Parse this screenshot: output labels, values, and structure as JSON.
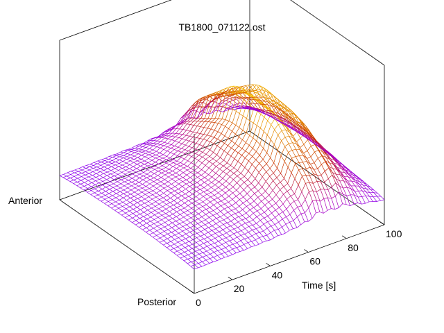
{
  "chart_data": {
    "type": "surface",
    "title": "TB1800_071122.ost",
    "xlabel": "Time [s]",
    "x_ticks": [
      0,
      20,
      40,
      60,
      80,
      100
    ],
    "xlim": [
      0,
      100
    ],
    "y_end_labels": {
      "front": "Posterior",
      "back": "Anterior"
    },
    "z_axis": {
      "ticks_shown": false,
      "range_hint": [
        0,
        1
      ]
    },
    "colormap": [
      "#8000ff",
      "#b000b8",
      "#c83000",
      "#e08000",
      "#ffd000"
    ],
    "mesh": {
      "time_samples": 51,
      "cross_samples": 40
    },
    "surface_description_points": [
      {
        "time": 0,
        "z_level": 0.05
      },
      {
        "time": 20,
        "z_level": 0.12
      },
      {
        "time": 40,
        "z_level": 0.22
      },
      {
        "time": 50,
        "z_level": 0.35
      },
      {
        "time": 60,
        "z_level": 0.6
      },
      {
        "time": 65,
        "z_level": 0.95
      },
      {
        "time": 72,
        "z_level": 0.8
      },
      {
        "time": 78,
        "z_level": 0.85
      },
      {
        "time": 88,
        "z_level": 0.45
      },
      {
        "time": 100,
        "z_level": 0.1
      }
    ]
  }
}
